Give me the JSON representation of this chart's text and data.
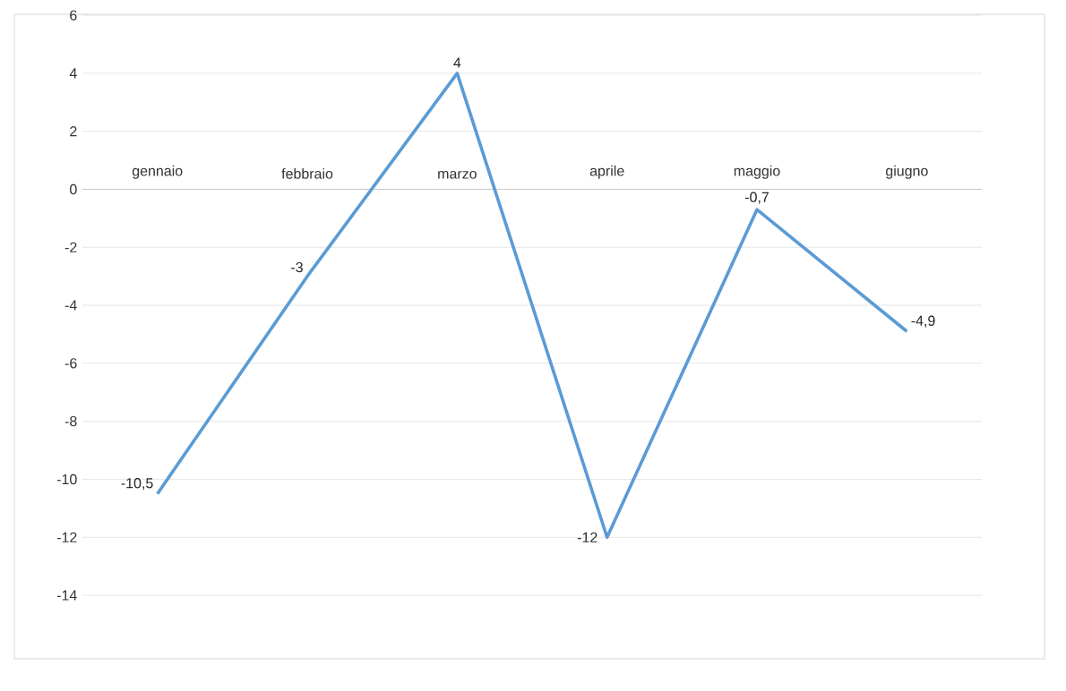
{
  "chart_data": {
    "type": "line",
    "categories": [
      "gennaio",
      "febbraio",
      "marzo",
      "aprile",
      "maggio",
      "giugno"
    ],
    "series": [
      {
        "color": "#5b9bd5",
        "values": [
          -10.5,
          -3,
          4,
          -12,
          -0.7,
          -4.9
        ],
        "value_labels": [
          "-10,5",
          "-3",
          "4",
          "-12",
          "-0,7",
          "-4,9"
        ]
      }
    ],
    "ylim": [
      -14,
      6
    ],
    "yticks": [
      -14,
      -12,
      -10,
      -8,
      -6,
      -4,
      -2,
      0,
      2,
      4,
      6
    ],
    "grid": "y",
    "marker": "none",
    "line_style": "solid"
  }
}
